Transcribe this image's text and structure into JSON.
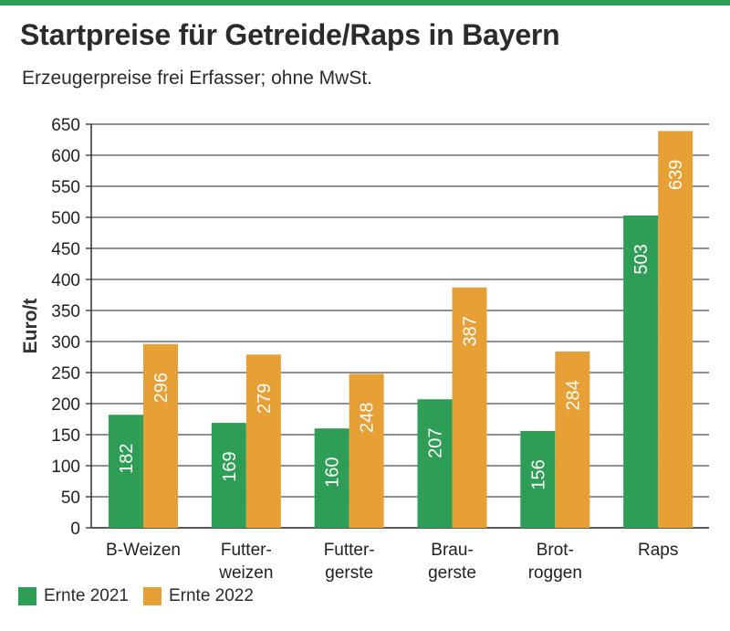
{
  "header": {
    "title": "Startpreise für Getreide/Raps in Bayern",
    "subtitle": "Erzeugerpreise frei Erfasser; ohne MwSt."
  },
  "colors": {
    "accent_bar": "#2e9d55",
    "series_2021": "#2e9d55",
    "series_2022": "#e6a035",
    "grid": "#222222"
  },
  "chart_data": {
    "type": "bar",
    "title": "Startpreise für Getreide/Raps in Bayern",
    "subtitle": "Erzeugerpreise frei Erfasser; ohne MwSt.",
    "xlabel": "",
    "ylabel": "Euro/t",
    "ylim": [
      0,
      650
    ],
    "yticks": [
      0,
      50,
      100,
      150,
      200,
      250,
      300,
      350,
      400,
      450,
      500,
      550,
      600,
      650
    ],
    "grid": true,
    "legend_position": "bottom-left",
    "categories": [
      [
        "B-Weizen"
      ],
      [
        "Futter-",
        "weizen"
      ],
      [
        "Futter-",
        "gerste"
      ],
      [
        "Brau-",
        "gerste"
      ],
      [
        "Brot-",
        "roggen"
      ],
      [
        "Raps"
      ]
    ],
    "series": [
      {
        "name": "Ernte 2021",
        "color": "#2e9d55",
        "values": [
          182,
          169,
          160,
          207,
          156,
          503
        ]
      },
      {
        "name": "Ernte 2022",
        "color": "#e6a035",
        "values": [
          296,
          279,
          248,
          387,
          284,
          639
        ]
      }
    ]
  }
}
